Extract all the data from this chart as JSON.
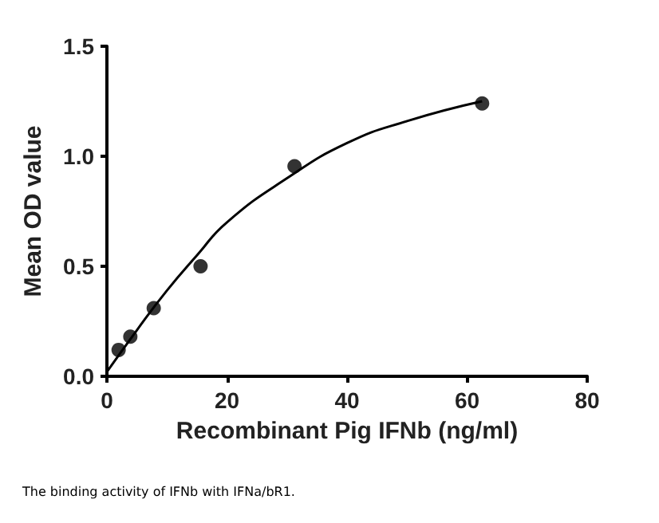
{
  "chart_data": {
    "type": "scatter",
    "xlabel": "Recombinant Pig IFNb (ng/ml)",
    "ylabel": "Mean OD value",
    "annotations": [
      "The binding activity of IFNb with IFNa/bR1."
    ],
    "series": [
      {
        "type": "scatter",
        "color": "#000000",
        "marker": "circle",
        "x": [
          1.95,
          3.9,
          7.8,
          15.6,
          31.25,
          62.5
        ],
        "values": [
          0.12,
          0.18,
          0.31,
          0.5,
          0.955,
          1.24
        ]
      },
      {
        "type": "line",
        "color": "#000000",
        "marker": "none",
        "x": [
          0,
          5,
          10,
          15,
          20,
          30,
          40,
          50,
          62.5
        ],
        "values": [
          0.02,
          0.21,
          0.39,
          0.55,
          0.7,
          0.9,
          1.06,
          1.16,
          1.25
        ]
      }
    ],
    "xlim": [
      0,
      80
    ],
    "xticks": [
      0,
      20,
      40,
      60,
      80
    ],
    "ylim": [
      0,
      1.5
    ],
    "yticks": [
      {
        "value": 0,
        "label": "0.0"
      },
      0.5,
      {
        "value": 1,
        "label": "1.0"
      },
      1.5
    ],
    "grid": false
  }
}
